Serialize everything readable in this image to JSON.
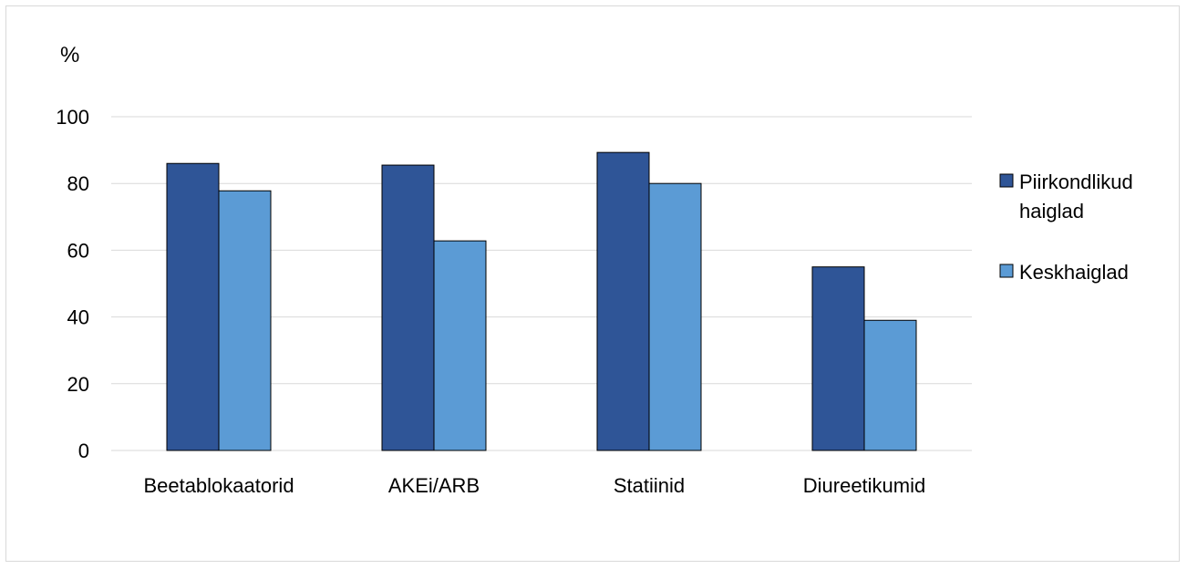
{
  "chart_data": {
    "type": "bar",
    "y_unit_label": "%",
    "categories": [
      "Beetablokaatorid",
      "AKEi/ARB",
      "Statiinid",
      "Diureetikumid"
    ],
    "series": [
      {
        "name": "Piirkondlikud haiglad",
        "values": [
          86,
          85.5,
          89.3,
          55
        ],
        "color": "#2f5597"
      },
      {
        "name": "Keskhaiglad",
        "values": [
          77.8,
          62.8,
          80,
          39
        ],
        "color": "#5b9bd5"
      }
    ],
    "ylim": [
      0,
      100
    ],
    "yticks": [
      0,
      20,
      40,
      60,
      80,
      100
    ],
    "grid": true,
    "legend_position": "right"
  }
}
